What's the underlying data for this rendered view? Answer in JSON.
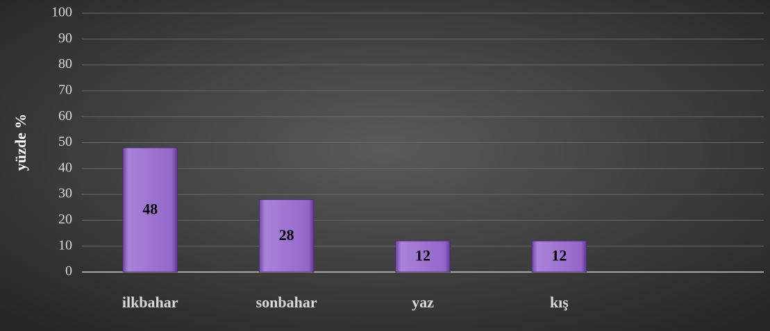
{
  "chart_data": {
    "type": "bar",
    "y_label": "yüzde %",
    "categories": [
      "ilkbahar",
      "sonbahar",
      "yaz",
      "kış",
      null
    ],
    "values": [
      48,
      28,
      12,
      12,
      null
    ],
    "color": "#8e5fc4",
    "ylim": [
      0,
      100
    ],
    "yticks": [
      0,
      10,
      20,
      30,
      40,
      50,
      60,
      70,
      80,
      90,
      100
    ],
    "grid": true
  }
}
